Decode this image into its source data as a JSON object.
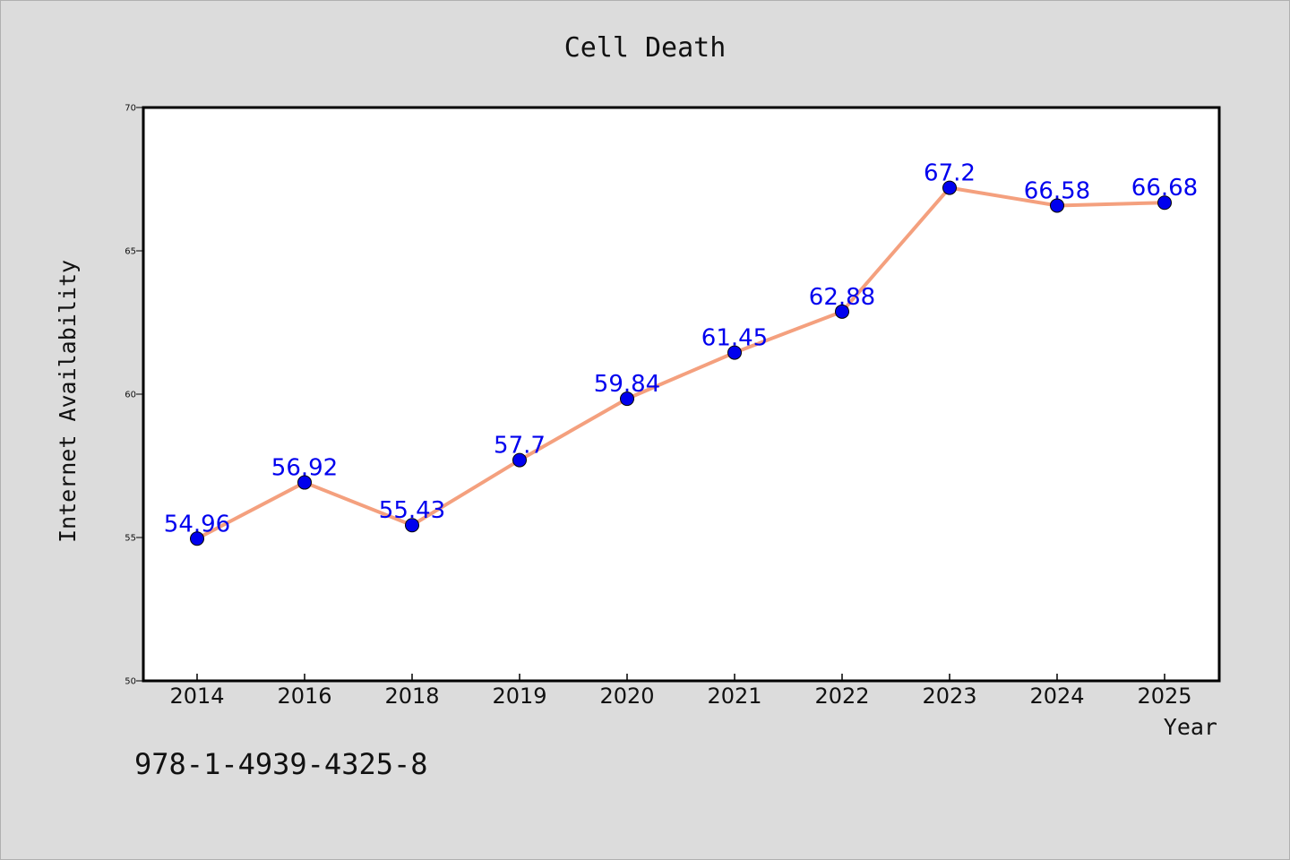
{
  "chart_data": {
    "type": "line",
    "title": "Cell Death",
    "xlabel": "Year",
    "ylabel": "Internet Availability",
    "categories": [
      "2014",
      "2016",
      "2018",
      "2019",
      "2020",
      "2021",
      "2022",
      "2023",
      "2024",
      "2025"
    ],
    "series": [
      {
        "values": [
          54.96,
          56.92,
          55.43,
          57.7,
          59.84,
          61.45,
          62.88,
          67.2,
          66.58,
          66.68
        ],
        "labels": [
          "54.96",
          "56.92",
          "55.43",
          "57.7",
          "59.84",
          "61.45",
          "62.88",
          "67.2",
          "66.58",
          "66.68"
        ],
        "line_color": "#f4a07e",
        "marker_color": "#0000ee"
      }
    ],
    "ylim": [
      50,
      70
    ],
    "yticks": [
      "50",
      "55",
      "60",
      "65",
      "70"
    ],
    "grid": false,
    "legend": "none",
    "label_color": "#0000ee"
  },
  "footnote": "978-1-4939-4325-8"
}
